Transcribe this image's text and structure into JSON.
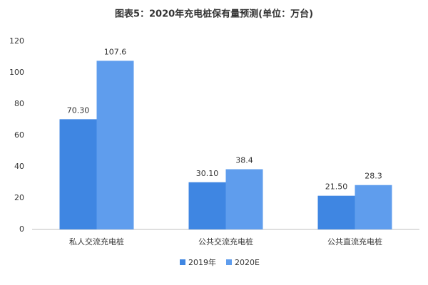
{
  "chart_data": {
    "type": "bar",
    "title": "图表5：2020年充电桩保有量预测(单位：万台)",
    "categories": [
      "私人交流充电桩",
      "公共交流充电桩",
      "公共直流充电桩"
    ],
    "series": [
      {
        "name": "2019年",
        "color": "#3f86e2",
        "values": [
          70.3,
          30.1,
          21.5
        ],
        "value_labels": [
          "70.30",
          "30.10",
          "21.50"
        ]
      },
      {
        "name": "2020E",
        "color": "#5f9ded",
        "values": [
          107.6,
          38.4,
          28.3
        ]
      }
    ],
    "ylim": [
      0,
      120
    ],
    "yticks": [
      0,
      20,
      40,
      60,
      80,
      100,
      120
    ],
    "grid": false,
    "legend": "bottom"
  }
}
